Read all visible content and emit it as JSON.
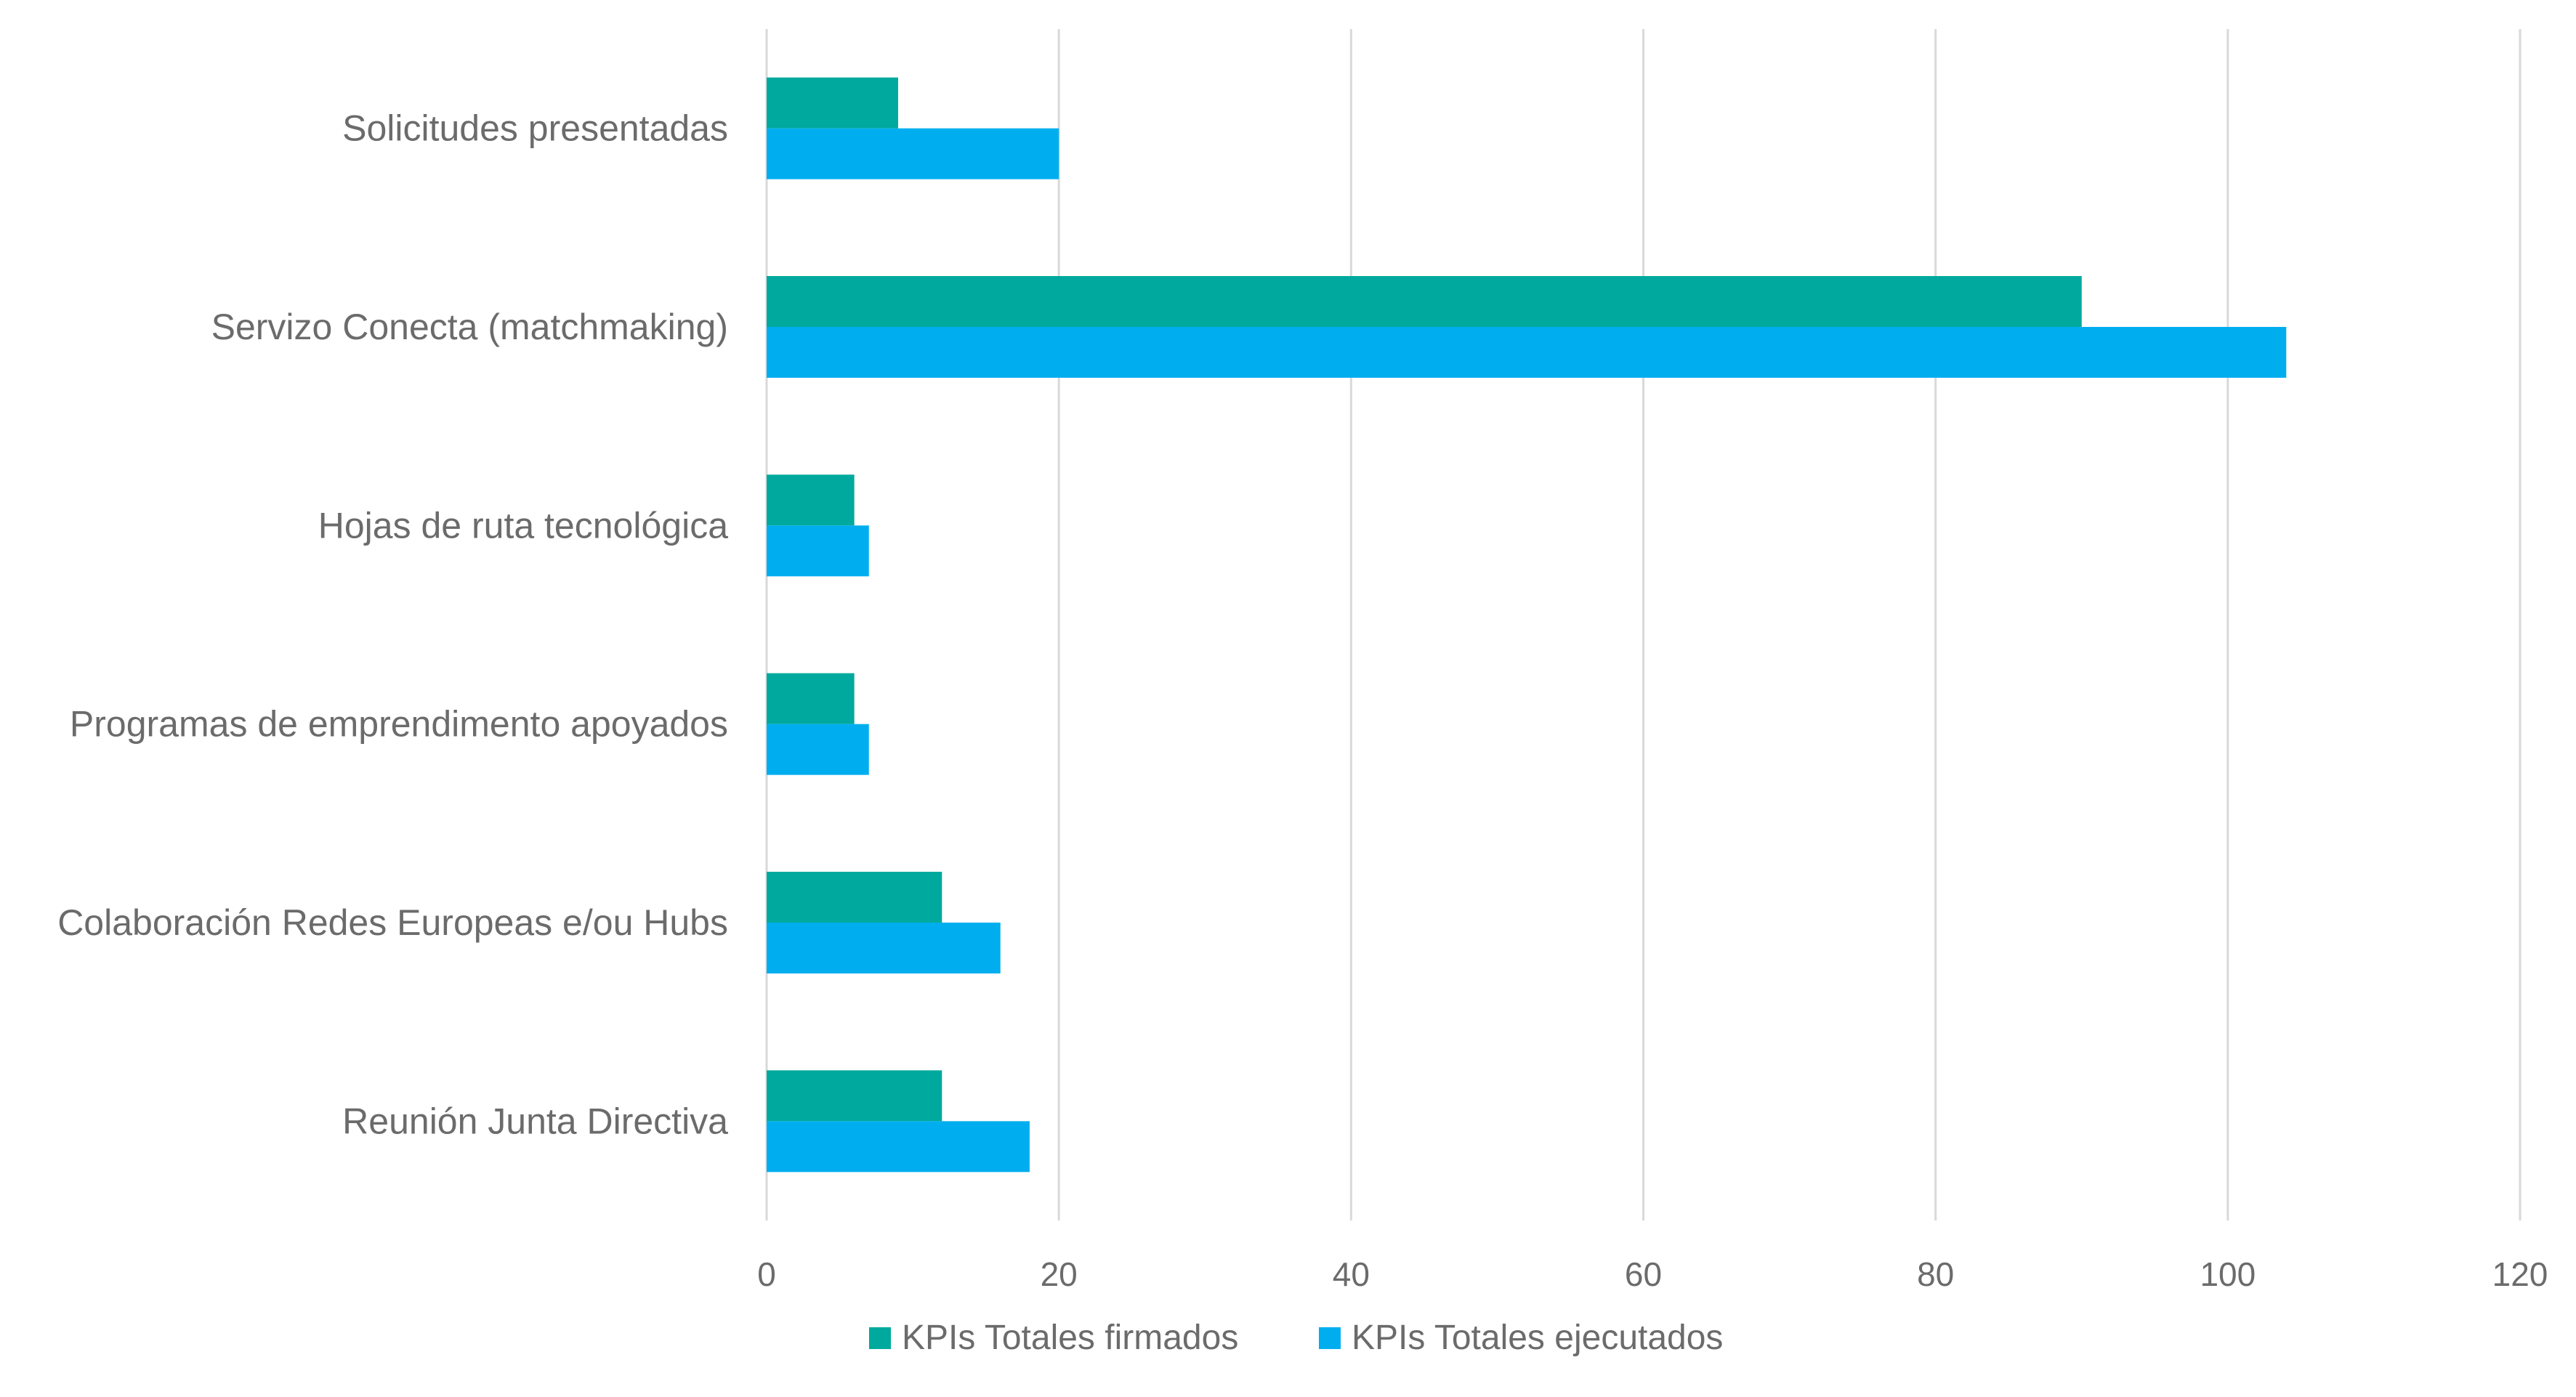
{
  "chart_data": {
    "type": "bar",
    "orientation": "horizontal",
    "categories": [
      "Solicitudes presentadas",
      "Servizo Conecta (matchmaking)",
      "Hojas de ruta tecnológica",
      "Programas de emprendimento apoyados",
      "Colaboración Redes Europeas e/ou Hubs",
      "Reunión Junta Directiva"
    ],
    "series": [
      {
        "name": "KPIs Totales firmados",
        "color": "#00a99d",
        "values": [
          9,
          90,
          6,
          6,
          12,
          12
        ]
      },
      {
        "name": "KPIs Totales ejecutados",
        "color": "#00aeef",
        "values": [
          20,
          104,
          7,
          7,
          16,
          18
        ]
      }
    ],
    "xlim": [
      0,
      120
    ],
    "xticks": [
      "0",
      "20",
      "40",
      "60",
      "80",
      "100",
      "120"
    ],
    "grid": true,
    "legend": "bottom",
    "title": "",
    "xlabel": "",
    "ylabel": ""
  }
}
